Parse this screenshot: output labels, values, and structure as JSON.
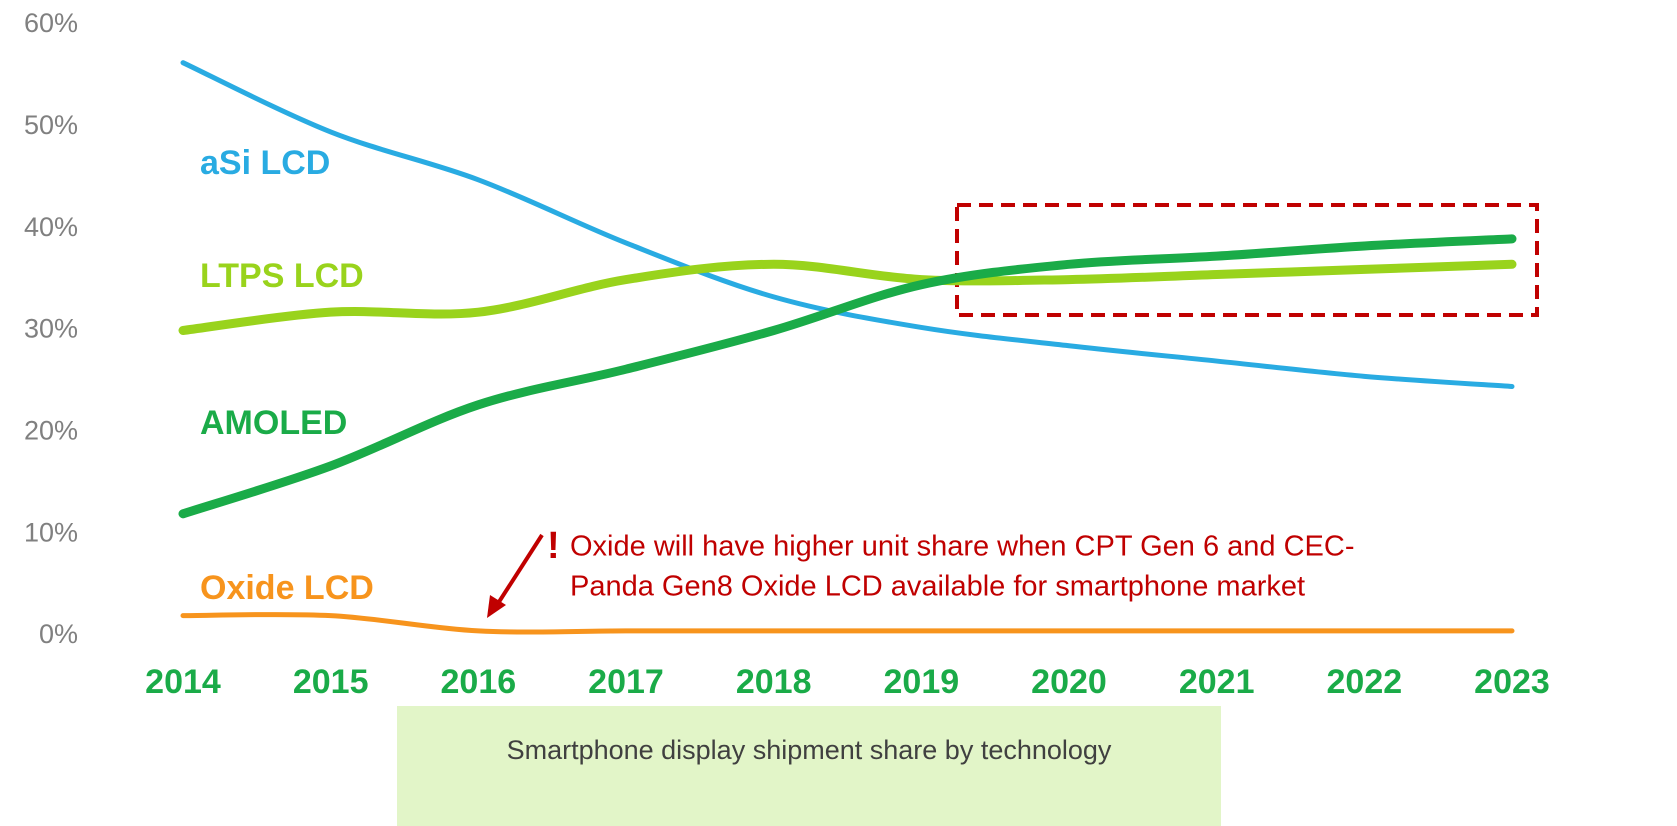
{
  "chart_data": {
    "type": "line",
    "caption": "Smartphone display shipment share by technology",
    "categories": [
      "2014",
      "2015",
      "2016",
      "2017",
      "2018",
      "2019",
      "2020",
      "2021",
      "2022",
      "2023"
    ],
    "series": [
      {
        "name": "aSi LCD",
        "color": "#29abe2",
        "values": [
          56.3,
          49.5,
          44.8,
          38.6,
          33.3,
          30.3,
          28.5,
          27,
          25.5,
          24.5
        ]
      },
      {
        "name": "LTPS LCD",
        "color": "#99d31c",
        "values": [
          30,
          31.8,
          31.8,
          35,
          36.5,
          35,
          35,
          35.5,
          36,
          36.5
        ]
      },
      {
        "name": "AMOLED",
        "color": "#1aab48",
        "values": [
          12,
          16.7,
          22.7,
          26.2,
          30,
          34.5,
          36.5,
          37.3,
          38.3,
          39
        ]
      },
      {
        "name": "Oxide LCD",
        "color": "#f7941d",
        "values": [
          2,
          2,
          0.5,
          0.5,
          0.5,
          0.5,
          0.5,
          0.5,
          0.5,
          0.5
        ]
      }
    ],
    "ylim": [
      0,
      60
    ],
    "yticks": [
      {
        "value": 0,
        "label": "0%"
      },
      {
        "value": 10,
        "label": "10%"
      },
      {
        "value": 20,
        "label": "20%"
      },
      {
        "value": 30,
        "label": "30%"
      },
      {
        "value": 40,
        "label": "40%"
      },
      {
        "value": 50,
        "label": "50%"
      },
      {
        "value": 60,
        "label": "60%"
      }
    ],
    "grid": false,
    "annotation": {
      "mark": "!",
      "lines": [
        "Oxide will have higher unit share when CPT Gen 6 and CEC-",
        "Panda Gen8 Oxide LCD available for smartphone market"
      ]
    }
  }
}
